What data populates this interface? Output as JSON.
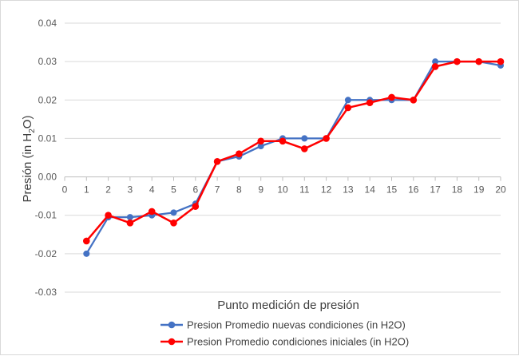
{
  "chart_data": {
    "type": "line",
    "title": "",
    "xlabel": "Punto medición  de presión",
    "ylabel": "Presión (in H2O)",
    "ylabel_parts": {
      "pre": "Presión (in H",
      "sub": "2",
      "post": "O)"
    },
    "x": [
      1,
      2,
      3,
      4,
      5,
      6,
      7,
      8,
      9,
      10,
      11,
      12,
      13,
      14,
      15,
      16,
      17,
      18,
      19,
      20
    ],
    "xlim": [
      0,
      20
    ],
    "ylim": [
      -0.03,
      0.04
    ],
    "x_ticks": [
      0,
      1,
      2,
      3,
      4,
      5,
      6,
      7,
      8,
      9,
      10,
      11,
      12,
      13,
      14,
      15,
      16,
      17,
      18,
      19,
      20
    ],
    "y_ticks": [
      {
        "value": 0.04,
        "label": "0.04"
      },
      {
        "value": 0.03,
        "label": "0.03"
      },
      {
        "value": 0.02,
        "label": "0.02"
      },
      {
        "value": 0.01,
        "label": "0.01"
      },
      {
        "value": 0.0,
        "label": "0.00"
      },
      {
        "value": -0.01,
        "label": "-0.01"
      },
      {
        "value": -0.02,
        "label": "-0.02"
      },
      {
        "value": -0.03,
        "label": "-0.03"
      }
    ],
    "grid": {
      "horizontal": true,
      "vertical": false
    },
    "legend_position": "bottom",
    "series": [
      {
        "name": "Presion Promedio  nuevas condiciones  (in H2O)",
        "color": "#4472c4",
        "values": [
          -0.02,
          -0.0105,
          -0.0105,
          -0.01,
          -0.0093,
          -0.007,
          0.004,
          0.0053,
          0.008,
          0.01,
          0.01,
          0.01,
          0.02,
          0.02,
          0.02,
          0.02,
          0.03,
          0.03,
          0.03,
          0.029
        ]
      },
      {
        "name": "Presion Promedio   condiciones iniciales (in H2O)",
        "color": "#ff0000",
        "values": [
          -0.0167,
          -0.01,
          -0.012,
          -0.009,
          -0.012,
          -0.0077,
          0.004,
          0.006,
          0.0093,
          0.0093,
          0.0073,
          0.01,
          0.018,
          0.0193,
          0.0207,
          0.02,
          0.0287,
          0.03,
          0.03,
          0.03
        ]
      }
    ]
  }
}
